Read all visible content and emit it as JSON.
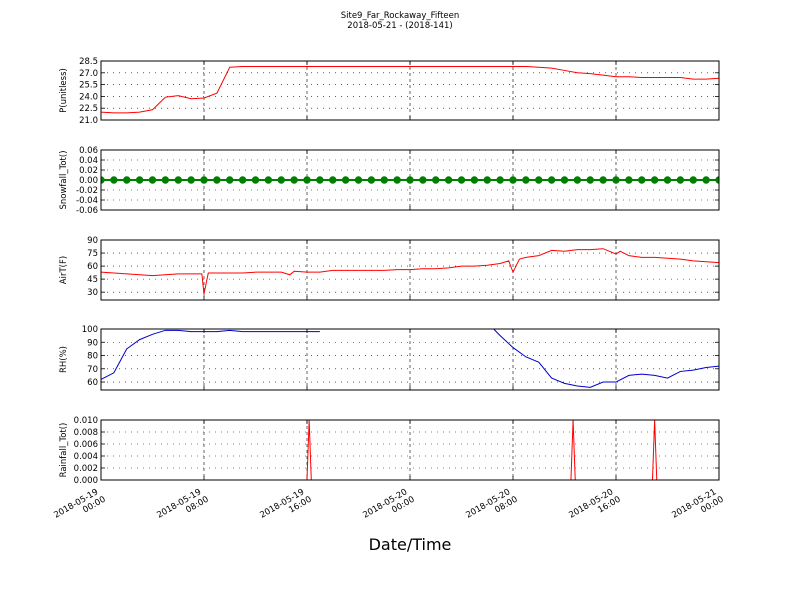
{
  "title": "Site9_Far_Rockaway_Fifteen",
  "subtitle": "2018-05-21 - (2018-141)",
  "xlabel": "Date/Time",
  "chart_data": [
    {
      "type": "line",
      "ylabel": "P(unitless)",
      "color": "#ff0000",
      "xlim": [
        "2018-05-19 00:00",
        "2018-05-21 00:00"
      ],
      "xticks": [
        "2018-05-19 00:00",
        "2018-05-19 08:00",
        "2018-05-19 16:00",
        "2018-05-20 00:00",
        "2018-05-20 08:00",
        "2018-05-20 16:00",
        "2018-05-21 00:00"
      ],
      "ylim": [
        21.0,
        28.5
      ],
      "yticks": [
        {
          "value": 21.0,
          "label": "21.0"
        },
        22.5,
        {
          "value": 24.0,
          "label": "24.0"
        },
        25.5,
        {
          "value": 27.0,
          "label": "27.0"
        },
        28.5
      ],
      "x": [
        "2018-05-19 00:00",
        "2018-05-19 01:00",
        "2018-05-19 02:00",
        "2018-05-19 03:00",
        "2018-05-19 04:00",
        "2018-05-19 05:00",
        "2018-05-19 06:00",
        "2018-05-19 07:00",
        "2018-05-19 08:00",
        "2018-05-19 09:00",
        "2018-05-19 10:00",
        "2018-05-19 11:00",
        "2018-05-19 12:00",
        "2018-05-19 13:00",
        "2018-05-19 14:00",
        "2018-05-19 15:00",
        "2018-05-19 16:00",
        "2018-05-19 17:00",
        "2018-05-19 18:00",
        "2018-05-19 19:00",
        "2018-05-19 20:00",
        "2018-05-19 21:00",
        "2018-05-19 22:00",
        "2018-05-19 23:00",
        "2018-05-20 00:00",
        "2018-05-20 01:00",
        "2018-05-20 02:00",
        "2018-05-20 03:00",
        "2018-05-20 04:00",
        "2018-05-20 05:00",
        "2018-05-20 06:00",
        "2018-05-20 07:00",
        "2018-05-20 08:00",
        "2018-05-20 09:00",
        "2018-05-20 10:00",
        "2018-05-20 11:00",
        "2018-05-20 12:00",
        "2018-05-20 13:00",
        "2018-05-20 14:00",
        "2018-05-20 15:00",
        "2018-05-20 16:00",
        "2018-05-20 17:00",
        "2018-05-20 18:00",
        "2018-05-20 19:00",
        "2018-05-20 20:00",
        "2018-05-20 21:00",
        "2018-05-20 22:00",
        "2018-05-20 23:00",
        "2018-05-21 00:00"
      ],
      "values": [
        22.0,
        21.9,
        21.9,
        22.0,
        22.3,
        23.9,
        24.1,
        23.7,
        23.8,
        24.4,
        27.7,
        27.8,
        27.8,
        27.8,
        27.8,
        27.8,
        27.8,
        27.8,
        27.8,
        27.8,
        27.8,
        27.8,
        27.8,
        27.8,
        27.8,
        27.8,
        27.8,
        27.8,
        27.8,
        27.8,
        27.8,
        27.8,
        27.8,
        27.8,
        27.7,
        27.6,
        27.3,
        27.0,
        26.9,
        26.7,
        26.5,
        26.5,
        26.4,
        26.4,
        26.4,
        26.4,
        26.2,
        26.2,
        26.3
      ]
    },
    {
      "type": "line",
      "ylabel": "Snowfall_Tot()",
      "color": "#008000",
      "marker": "o",
      "xlim": [
        "2018-05-19 00:00",
        "2018-05-21 00:00"
      ],
      "xticks": [
        "2018-05-19 00:00",
        "2018-05-19 08:00",
        "2018-05-19 16:00",
        "2018-05-20 00:00",
        "2018-05-20 08:00",
        "2018-05-20 16:00",
        "2018-05-21 00:00"
      ],
      "ylim": [
        -0.06,
        0.06
      ],
      "yticks": [
        -0.06,
        -0.04,
        -0.02,
        {
          "value": 0,
          "label": "0.00"
        },
        0.02,
        0.04,
        0.06
      ],
      "x": [
        "2018-05-19 00:00",
        "2018-05-19 01:00",
        "2018-05-19 02:00",
        "2018-05-19 03:00",
        "2018-05-19 04:00",
        "2018-05-19 05:00",
        "2018-05-19 06:00",
        "2018-05-19 07:00",
        "2018-05-19 08:00",
        "2018-05-19 09:00",
        "2018-05-19 10:00",
        "2018-05-19 11:00",
        "2018-05-19 12:00",
        "2018-05-19 13:00",
        "2018-05-19 14:00",
        "2018-05-19 15:00",
        "2018-05-19 16:00",
        "2018-05-19 17:00",
        "2018-05-19 18:00",
        "2018-05-19 19:00",
        "2018-05-19 20:00",
        "2018-05-19 21:00",
        "2018-05-19 22:00",
        "2018-05-19 23:00",
        "2018-05-20 00:00",
        "2018-05-20 01:00",
        "2018-05-20 02:00",
        "2018-05-20 03:00",
        "2018-05-20 04:00",
        "2018-05-20 05:00",
        "2018-05-20 06:00",
        "2018-05-20 07:00",
        "2018-05-20 08:00",
        "2018-05-20 09:00",
        "2018-05-20 10:00",
        "2018-05-20 11:00",
        "2018-05-20 12:00",
        "2018-05-20 13:00",
        "2018-05-20 14:00",
        "2018-05-20 15:00",
        "2018-05-20 16:00",
        "2018-05-20 17:00",
        "2018-05-20 18:00",
        "2018-05-20 19:00",
        "2018-05-20 20:00",
        "2018-05-20 21:00",
        "2018-05-20 22:00",
        "2018-05-20 23:00",
        "2018-05-21 00:00"
      ],
      "values": [
        0,
        0,
        0,
        0,
        0,
        0,
        0,
        0,
        0,
        0,
        0,
        0,
        0,
        0,
        0,
        0,
        0,
        0,
        0,
        0,
        0,
        0,
        0,
        0,
        0,
        0,
        0,
        0,
        0,
        0,
        0,
        0,
        0,
        0,
        0,
        0,
        0,
        0,
        0,
        0,
        0,
        0,
        0,
        0,
        0,
        0,
        0,
        0,
        0
      ]
    },
    {
      "type": "line",
      "ylabel": "AirT(F)",
      "color": "#ff0000",
      "xlim": [
        "2018-05-19 00:00",
        "2018-05-21 00:00"
      ],
      "xticks": [
        "2018-05-19 00:00",
        "2018-05-19 08:00",
        "2018-05-19 16:00",
        "2018-05-20 00:00",
        "2018-05-20 08:00",
        "2018-05-20 16:00",
        "2018-05-21 00:00"
      ],
      "ylim": [
        21,
        90
      ],
      "yticks": [
        30,
        45,
        60,
        75,
        90
      ],
      "x": [
        "2018-05-19 00:00",
        "2018-05-19 01:00",
        "2018-05-19 02:00",
        "2018-05-19 03:00",
        "2018-05-19 04:00",
        "2018-05-19 05:00",
        "2018-05-19 06:00",
        "2018-05-19 07:00",
        "2018-05-19 07:50",
        "2018-05-19 08:00",
        "2018-05-19 08:20",
        "2018-05-19 09:00",
        "2018-05-19 10:00",
        "2018-05-19 11:00",
        "2018-05-19 12:00",
        "2018-05-19 13:00",
        "2018-05-19 14:00",
        "2018-05-19 14:40",
        "2018-05-19 15:00",
        "2018-05-19 16:00",
        "2018-05-19 17:00",
        "2018-05-19 18:00",
        "2018-05-19 19:00",
        "2018-05-19 20:00",
        "2018-05-19 21:00",
        "2018-05-19 22:00",
        "2018-05-19 23:00",
        "2018-05-20 00:00",
        "2018-05-20 01:00",
        "2018-05-20 02:00",
        "2018-05-20 03:00",
        "2018-05-20 04:00",
        "2018-05-20 05:00",
        "2018-05-20 06:00",
        "2018-05-20 07:00",
        "2018-05-20 07:40",
        "2018-05-20 08:00",
        "2018-05-20 08:30",
        "2018-05-20 09:00",
        "2018-05-20 10:00",
        "2018-05-20 11:00",
        "2018-05-20 12:00",
        "2018-05-20 13:00",
        "2018-05-20 14:00",
        "2018-05-20 15:00",
        "2018-05-20 16:00",
        "2018-05-20 16:20",
        "2018-05-20 17:00",
        "2018-05-20 18:00",
        "2018-05-20 19:00",
        "2018-05-20 20:00",
        "2018-05-20 21:00",
        "2018-05-20 22:00",
        "2018-05-20 23:00",
        "2018-05-21 00:00"
      ],
      "values": [
        53,
        52,
        51,
        50,
        49,
        50,
        51,
        51,
        51,
        28,
        52,
        52,
        52,
        52,
        53,
        53,
        53,
        50,
        54,
        53,
        53,
        55,
        55,
        55,
        55,
        55,
        56,
        56,
        57,
        57,
        58,
        60,
        60,
        61,
        63,
        66,
        53,
        68,
        70,
        72,
        78,
        77,
        79,
        79,
        80,
        74,
        77,
        72,
        70,
        70,
        69,
        68,
        66,
        65,
        64
      ]
    },
    {
      "type": "line",
      "ylabel": "RH(%)",
      "color": "#0000cc",
      "xlim": [
        "2018-05-19 00:00",
        "2018-05-21 00:00"
      ],
      "xticks": [
        "2018-05-19 00:00",
        "2018-05-19 08:00",
        "2018-05-19 16:00",
        "2018-05-20 00:00",
        "2018-05-20 08:00",
        "2018-05-20 16:00",
        "2018-05-21 00:00"
      ],
      "ylim": [
        54,
        100
      ],
      "yticks": [
        60,
        70,
        80,
        90,
        100
      ],
      "x": [
        "2018-05-19 00:00",
        "2018-05-19 01:00",
        "2018-05-19 02:00",
        "2018-05-19 03:00",
        "2018-05-19 04:00",
        "2018-05-19 05:00",
        "2018-05-19 06:00",
        "2018-05-19 07:00",
        "2018-05-19 08:00",
        "2018-05-19 09:00",
        "2018-05-19 10:00",
        "2018-05-19 11:00",
        "2018-05-19 12:00",
        "2018-05-19 13:00",
        "2018-05-19 14:00",
        "2018-05-19 15:00",
        "2018-05-19 16:00",
        "2018-05-19 17:00",
        "2018-05-19 18:00",
        "2018-05-20 06:30",
        "2018-05-20 07:00",
        "2018-05-20 08:00",
        "2018-05-20 09:00",
        "2018-05-20 10:00",
        "2018-05-20 11:00",
        "2018-05-20 12:00",
        "2018-05-20 13:00",
        "2018-05-20 14:00",
        "2018-05-20 15:00",
        "2018-05-20 16:00",
        "2018-05-20 17:00",
        "2018-05-20 18:00",
        "2018-05-20 19:00",
        "2018-05-20 20:00",
        "2018-05-20 21:00",
        "2018-05-20 22:00",
        "2018-05-20 23:00",
        "2018-05-21 00:00"
      ],
      "values": [
        62,
        67,
        85,
        92,
        96,
        99,
        99,
        98,
        98,
        98,
        99,
        98,
        98,
        98,
        98,
        98,
        98,
        98,
        null,
        100,
        95,
        86,
        79,
        75,
        63,
        59,
        57,
        56,
        60,
        60,
        65,
        66,
        65,
        63,
        68,
        69,
        71,
        72
      ]
    },
    {
      "type": "line",
      "ylabel": "Rainfall_Tot()",
      "color": "#ff0000",
      "xlim": [
        "2018-05-19 00:00",
        "2018-05-21 00:00"
      ],
      "xticks": [
        "2018-05-19 00:00",
        "2018-05-19 08:00",
        "2018-05-19 16:00",
        "2018-05-20 00:00",
        "2018-05-20 08:00",
        "2018-05-20 16:00",
        "2018-05-21 00:00"
      ],
      "ylim": [
        0,
        0.01
      ],
      "yticks": [
        {
          "value": 0,
          "label": "0.000"
        },
        {
          "value": 0.002,
          "label": "0.002"
        },
        {
          "value": 0.004,
          "label": "0.004"
        },
        {
          "value": 0.006,
          "label": "0.006"
        },
        {
          "value": 0.008,
          "label": "0.008"
        },
        {
          "value": 0.01,
          "label": "0.010"
        }
      ],
      "x": [
        "2018-05-19 00:00",
        "2018-05-19 16:00",
        "2018-05-19 16:10",
        "2018-05-19 16:20",
        "2018-05-20 12:30",
        "2018-05-20 12:40",
        "2018-05-20 12:50",
        "2018-05-20 18:50",
        "2018-05-20 19:00",
        "2018-05-20 19:10",
        "2018-05-21 00:00"
      ],
      "values": [
        0,
        0,
        0.01,
        0,
        0,
        0.01,
        0,
        0,
        0.01,
        0,
        0
      ]
    }
  ]
}
